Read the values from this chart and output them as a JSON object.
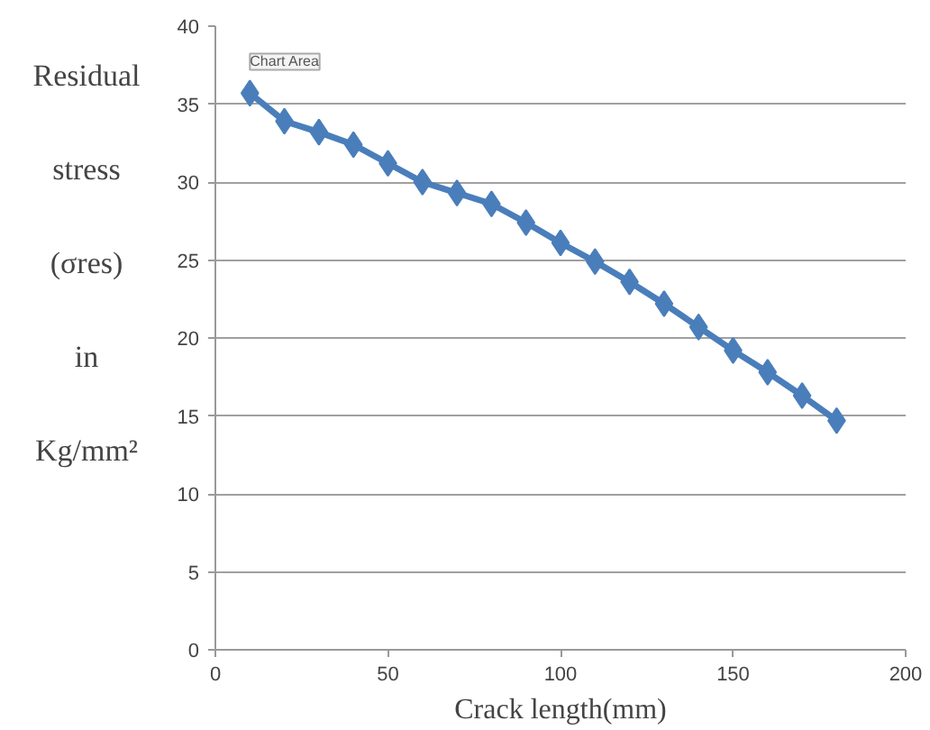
{
  "chart_data": {
    "type": "line",
    "xlabel": "Crack length(mm)",
    "ylabel": "Residual stress (σres) in Kg/mm²",
    "annotations": [
      "Chart Area"
    ],
    "x": [
      10,
      20,
      30,
      40,
      50,
      60,
      70,
      80,
      90,
      100,
      110,
      120,
      130,
      140,
      150,
      160,
      170,
      180
    ],
    "series": [
      {
        "color": "#4a7ebb",
        "values": [
          35.7,
          33.9,
          33.2,
          32.4,
          31.2,
          30.0,
          29.3,
          28.6,
          27.4,
          26.1,
          24.9,
          23.6,
          22.2,
          20.7,
          19.2,
          17.8,
          16.3,
          14.7
        ]
      }
    ],
    "xlim": [
      0,
      200
    ],
    "xticks": [
      0,
      50,
      100,
      150,
      200
    ],
    "ylim": [
      0,
      40
    ],
    "yticks": [
      0,
      5,
      10,
      15,
      20,
      25,
      30,
      35,
      40
    ],
    "grid": "y",
    "marker": "diamond",
    "line_style": "solid"
  }
}
